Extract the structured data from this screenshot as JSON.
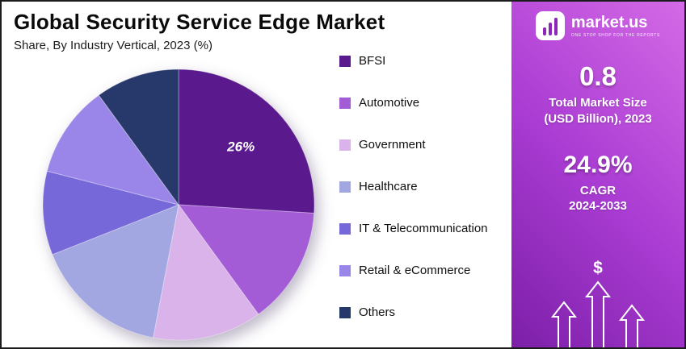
{
  "header": {
    "title": "Global Security Service Edge Market",
    "subtitle": "Share, By Industry Vertical, 2023 (%)"
  },
  "chart_data": {
    "type": "pie",
    "title": "Global Security Service Edge Market",
    "subtitle": "Share, By Industry Vertical, 2023 (%)",
    "labels": [
      "BFSI",
      "Automotive",
      "Government",
      "Healthcare",
      "IT & Telecommunication",
      "Retail & eCommerce",
      "Others"
    ],
    "values": [
      26,
      14,
      13,
      16,
      10,
      11,
      10
    ],
    "colors": [
      "#5a1a8e",
      "#a35bd6",
      "#d9b3ea",
      "#a2a7e2",
      "#7668d8",
      "#9a86e8",
      "#27386b"
    ],
    "start_angle_deg": 0,
    "direction": "clockwise",
    "legend_position": "right",
    "annotations": [
      {
        "slice_index": 0,
        "text": "26%"
      }
    ]
  },
  "panel": {
    "logo_text": "market.us",
    "logo_tagline": "ONE STOP SHOP FOR THE REPORTS",
    "market_size_value": "0.8",
    "market_size_label1": "Total Market Size",
    "market_size_label2": "(USD Billion), 2023",
    "cagr_value": "24.9%",
    "cagr_label1": "CAGR",
    "cagr_label2": "2024-2033",
    "dollar_symbol": "$",
    "gradient_from": "#7c1fa8",
    "gradient_mid": "#aa3cd3",
    "gradient_to": "#d46ae6"
  }
}
